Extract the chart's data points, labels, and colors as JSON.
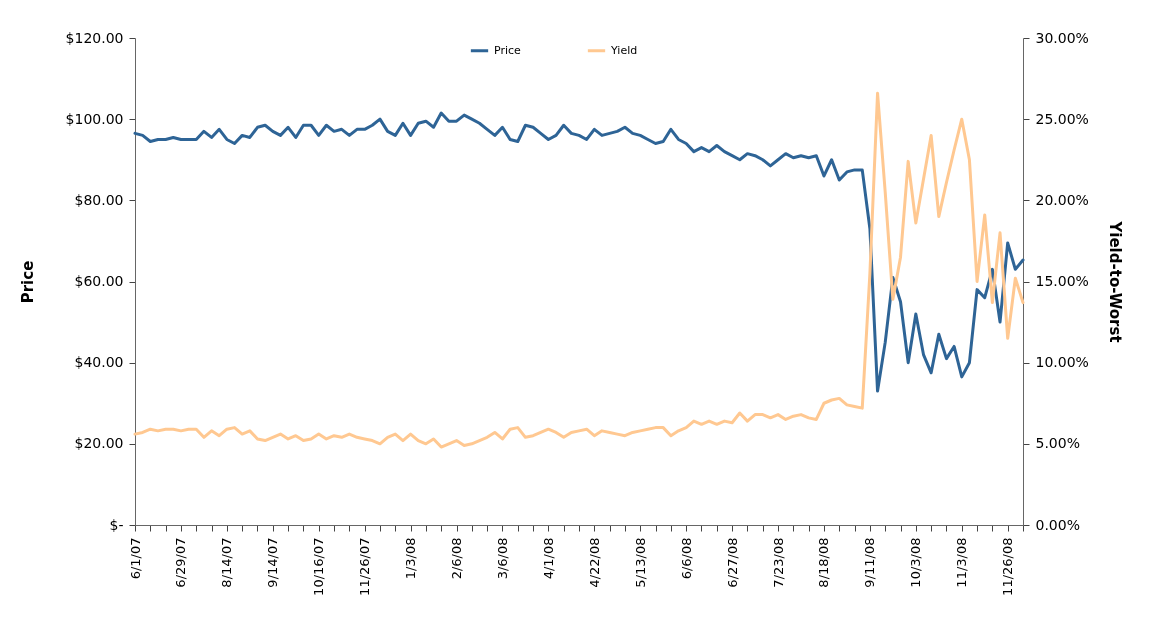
{
  "chart_data": {
    "type": "line",
    "ylabel": "Price",
    "y2label": "Yield-to-Worst",
    "categories": [
      "6/1/07",
      null,
      null,
      null,
      null,
      null,
      "6/29/07",
      null,
      null,
      null,
      null,
      null,
      "8/14/07",
      null,
      null,
      null,
      null,
      null,
      "9/14/07",
      null,
      null,
      null,
      null,
      null,
      "10/16/07",
      null,
      null,
      null,
      null,
      null,
      "11/26/07",
      null,
      null,
      null,
      null,
      null,
      "1/3/08",
      null,
      null,
      null,
      null,
      null,
      "2/6/08",
      null,
      null,
      null,
      null,
      null,
      "3/6/08",
      null,
      null,
      null,
      null,
      null,
      "4/1/08",
      null,
      null,
      null,
      null,
      null,
      "4/22/08",
      null,
      null,
      null,
      null,
      null,
      "5/13/08",
      null,
      null,
      null,
      null,
      null,
      "6/6/08",
      null,
      null,
      null,
      null,
      null,
      "6/27/08",
      null,
      null,
      null,
      null,
      null,
      "7/23/08",
      null,
      null,
      null,
      null,
      null,
      "8/18/08",
      null,
      null,
      null,
      null,
      null,
      "9/11/08",
      null,
      null,
      null,
      null,
      null,
      "10/3/08",
      null,
      null,
      null,
      null,
      null,
      "11/3/08",
      null,
      null,
      null,
      null,
      null,
      "11/26/08",
      null,
      null
    ],
    "series": [
      {
        "name": "Price",
        "color": "#2e6496",
        "values": [
          96.5,
          96,
          94.5,
          95,
          95,
          95.5,
          95,
          95,
          95,
          97,
          95.5,
          97.5,
          95,
          94,
          96,
          95.5,
          98,
          98.5,
          97,
          96,
          98,
          95.5,
          98.5,
          98.5,
          96,
          98.5,
          97,
          97.5,
          96,
          97.5,
          97.5,
          98.5,
          100,
          97,
          96,
          99,
          96,
          99,
          99.5,
          98,
          101.5,
          99.5,
          99.5,
          101,
          100,
          99,
          97.5,
          96,
          98,
          95,
          94.5,
          98.5,
          98,
          96.5,
          95,
          96,
          98.5,
          96.5,
          96,
          95,
          97.5,
          96,
          96.5,
          97,
          98,
          96.5,
          96,
          95,
          94,
          94.5,
          97.5,
          95,
          94,
          92,
          93,
          92,
          93.5,
          92,
          91,
          90,
          91.5,
          91,
          90,
          88.5,
          90,
          91.5,
          90.5,
          91,
          90.5,
          91,
          86,
          90,
          85,
          87,
          87.5,
          87.5,
          73,
          33,
          45,
          61,
          55,
          40,
          52,
          42,
          37.5,
          47,
          41,
          44,
          36.5,
          40,
          58,
          56,
          63,
          50,
          69.5,
          63,
          65.3
        ]
      },
      {
        "name": "Yield",
        "color": "#ffc891",
        "axis": "y2",
        "values": [
          5.6,
          5.7,
          5.9,
          5.8,
          5.9,
          5.9,
          5.8,
          5.9,
          5.9,
          5.4,
          5.8,
          5.5,
          5.9,
          6.0,
          5.6,
          5.8,
          5.3,
          5.2,
          5.4,
          5.6,
          5.3,
          5.5,
          5.2,
          5.3,
          5.6,
          5.3,
          5.5,
          5.4,
          5.6,
          5.4,
          5.3,
          5.2,
          5.0,
          5.4,
          5.6,
          5.2,
          5.6,
          5.2,
          5.0,
          5.3,
          4.8,
          5.0,
          5.2,
          4.9,
          5.0,
          5.2,
          5.4,
          5.7,
          5.3,
          5.9,
          6.0,
          5.4,
          5.5,
          5.7,
          5.9,
          5.7,
          5.4,
          5.7,
          5.8,
          5.9,
          5.5,
          5.8,
          5.7,
          5.6,
          5.5,
          5.7,
          5.8,
          5.9,
          6.0,
          6.0,
          5.5,
          5.8,
          6.0,
          6.4,
          6.2,
          6.4,
          6.2,
          6.4,
          6.3,
          6.9,
          6.4,
          6.8,
          6.8,
          6.6,
          6.8,
          6.5,
          6.7,
          6.8,
          6.6,
          6.5,
          7.5,
          7.7,
          7.8,
          7.4,
          7.3,
          7.2,
          15.5,
          26.6,
          20.5,
          13.9,
          16.5,
          22.4,
          18.6,
          21.3,
          24.0,
          19.0,
          21.1,
          23.1,
          25.0,
          22.5,
          15.0,
          19.1,
          13.7,
          18.0,
          11.5,
          15.2,
          13.7
        ]
      }
    ],
    "ylim": [
      0,
      120
    ],
    "yticks": [
      {
        "value": 0,
        "label": "$-"
      },
      {
        "value": 20,
        "label": "$20.00"
      },
      {
        "value": 40,
        "label": "$40.00"
      },
      {
        "value": 60,
        "label": "$60.00"
      },
      {
        "value": 80,
        "label": "$80.00"
      },
      {
        "value": 100,
        "label": "$100.00"
      },
      {
        "value": 120,
        "label": "$120.00"
      }
    ],
    "y2lim": [
      0,
      30
    ],
    "y2ticks": [
      {
        "value": 0,
        "label": "0.00%"
      },
      {
        "value": 5,
        "label": "5.00%"
      },
      {
        "value": 10,
        "label": "10.00%"
      },
      {
        "value": 15,
        "label": "15.00%"
      },
      {
        "value": 20,
        "label": "20.00%"
      },
      {
        "value": 25,
        "label": "25.00%"
      },
      {
        "value": 30,
        "label": "30.00%"
      }
    ],
    "grid": false,
    "legend": "top",
    "line_style": "solid",
    "marker": "none"
  }
}
